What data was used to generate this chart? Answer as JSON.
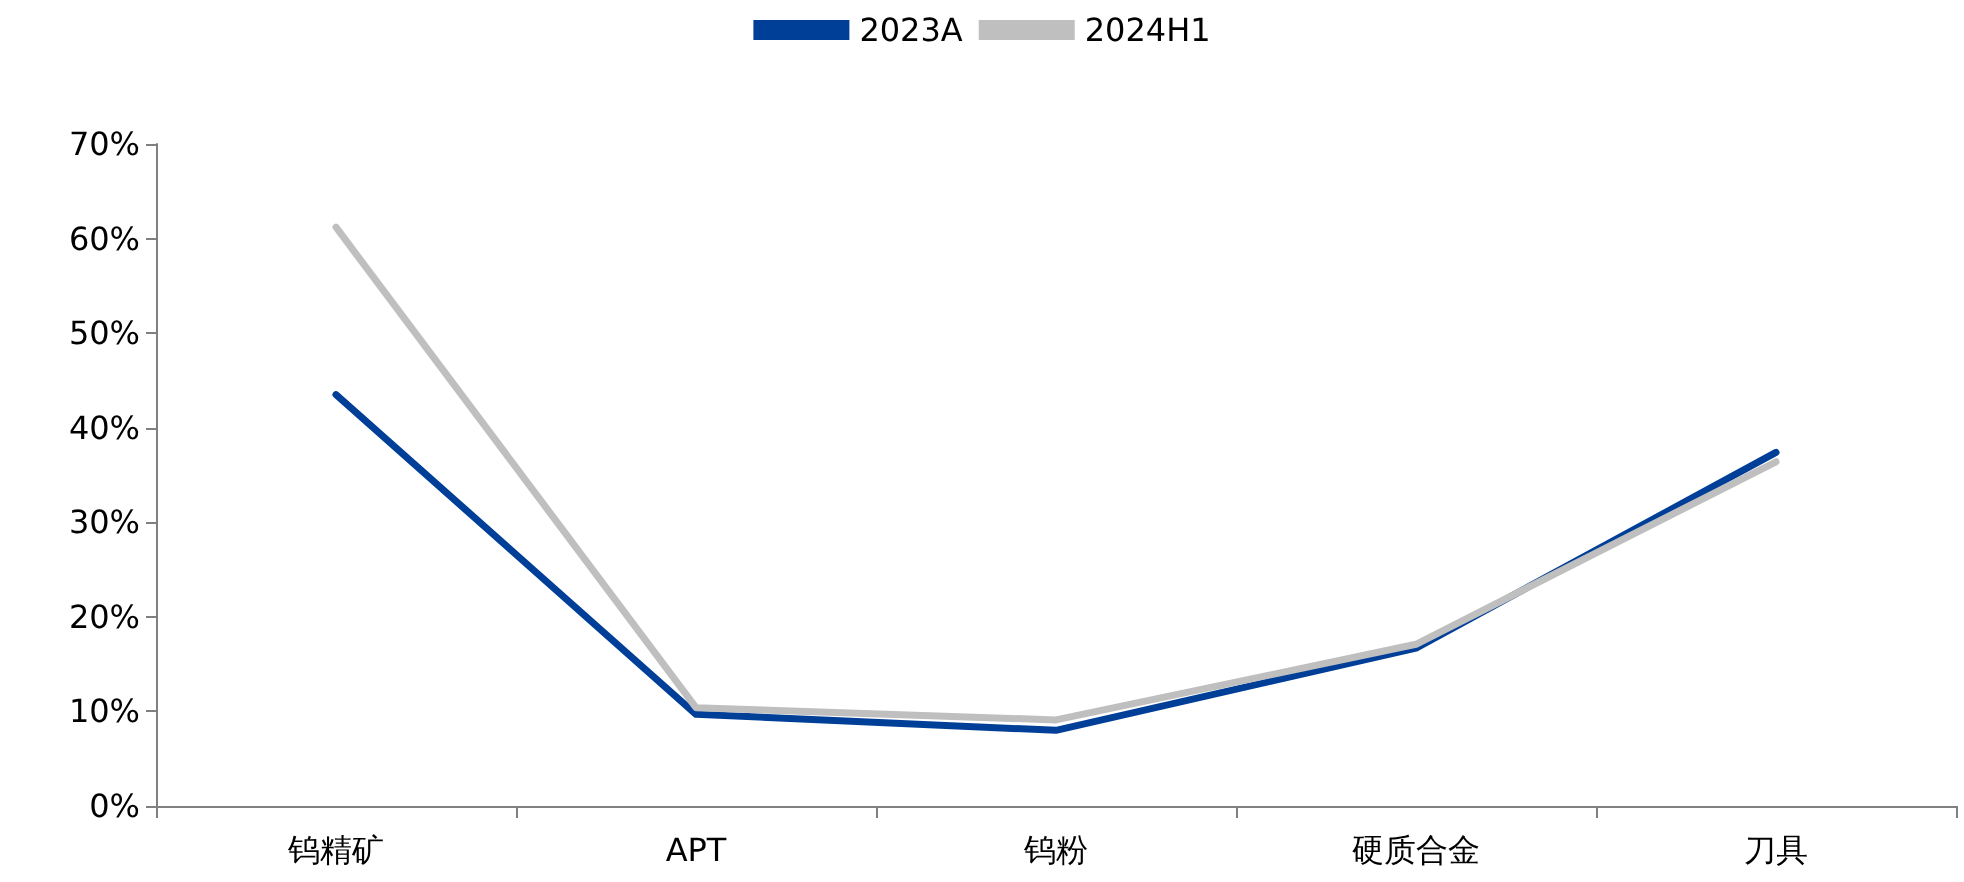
{
  "chart_data": {
    "type": "line",
    "categories": [
      "钨精矿",
      "APT",
      "钨粉",
      "硬质合金",
      "刀具"
    ],
    "series": [
      {
        "name": "2023A",
        "color": "#003f98",
        "values": [
          43.5,
          9.7,
          8.0,
          16.7,
          37.4
        ]
      },
      {
        "name": "2024H1",
        "color": "#bfbfbf",
        "values": [
          61.2,
          10.4,
          9.1,
          17.1,
          36.4
        ]
      }
    ],
    "ylim": [
      0,
      70
    ],
    "yticks": [
      {
        "value": 0,
        "label": "0%"
      },
      {
        "value": 10,
        "label": "10%"
      },
      {
        "value": 20,
        "label": "20%"
      },
      {
        "value": 30,
        "label": "30%"
      },
      {
        "value": 40,
        "label": "40%"
      },
      {
        "value": 50,
        "label": "50%"
      },
      {
        "value": 60,
        "label": "60%"
      },
      {
        "value": 70,
        "label": "70%"
      }
    ],
    "grid": false,
    "legend": "top",
    "marker": "none",
    "line_style": "solid"
  }
}
